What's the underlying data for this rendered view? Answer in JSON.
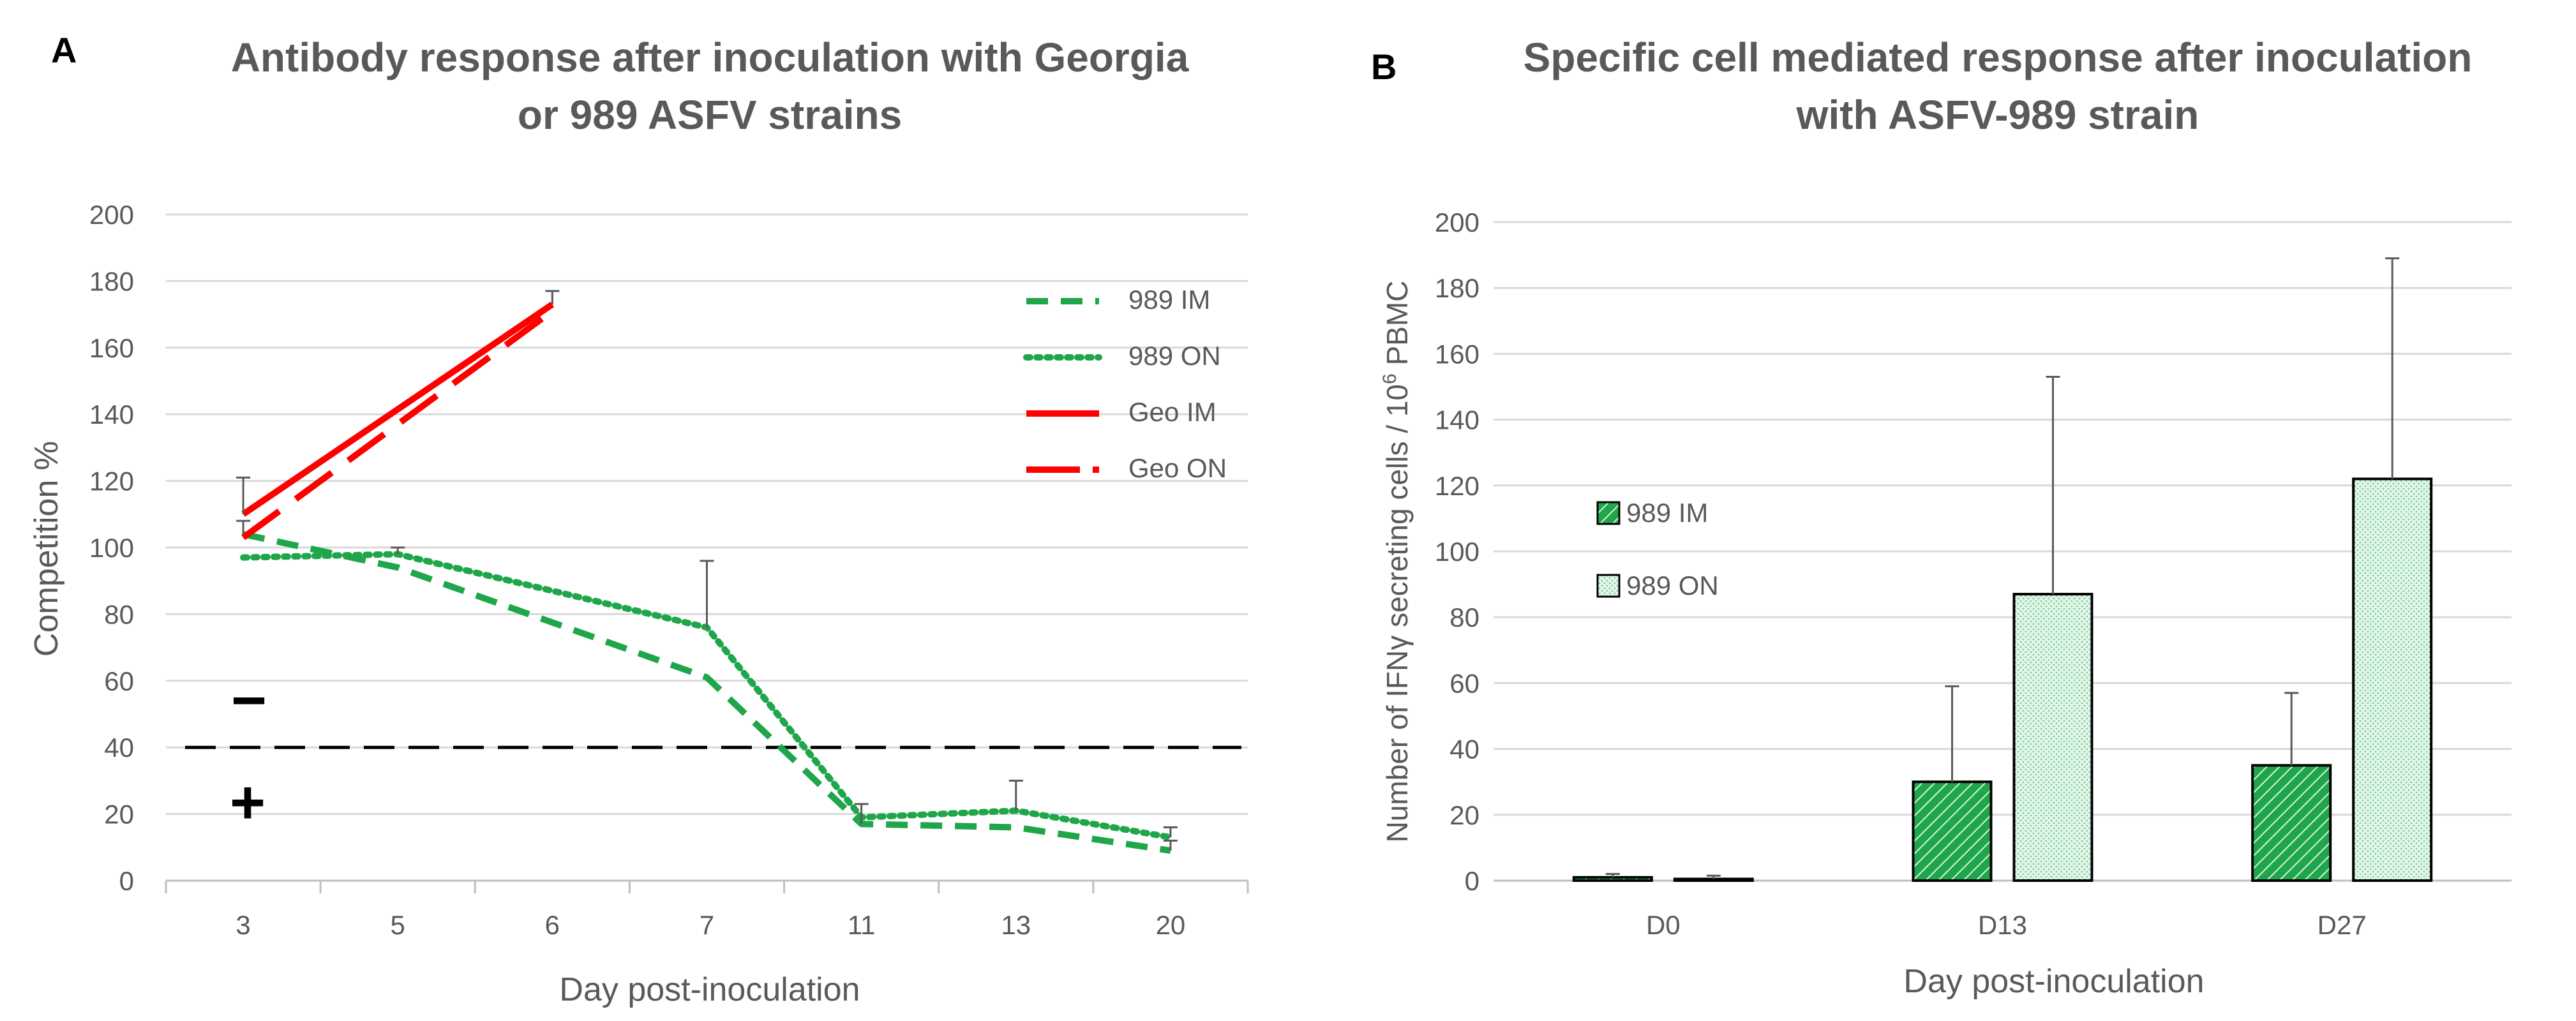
{
  "chart_data": [
    {
      "panel": "A",
      "type": "line",
      "title_lines": [
        "Antibody response after inoculation with Georgia",
        "or 989 ASFV strains"
      ],
      "xlabel": "Day post-inoculation",
      "ylabel": "Competition %",
      "categories": [
        "3",
        "5",
        "6",
        "7",
        "11",
        "13",
        "20"
      ],
      "ylim": [
        0,
        200
      ],
      "yticks": [
        0,
        20,
        40,
        60,
        80,
        100,
        120,
        140,
        160,
        180,
        200
      ],
      "grid": true,
      "legend_position": "top-right",
      "threshold": {
        "value": 40,
        "above_symbol": "−",
        "below_symbol": "+"
      },
      "series": [
        {
          "name": "989 IM",
          "color": "#1fa64a",
          "style": "dashed",
          "values": [
            104,
            94,
            null,
            61,
            17,
            16,
            9
          ],
          "errors": [
            4,
            null,
            null,
            null,
            6,
            null,
            3
          ]
        },
        {
          "name": "989 ON",
          "color": "#1fa64a",
          "style": "dotted",
          "values": [
            97,
            98,
            null,
            76,
            19,
            21,
            13
          ],
          "errors": [
            null,
            2,
            null,
            20,
            null,
            9,
            3
          ]
        },
        {
          "name": "Geo IM",
          "color": "#ff0000",
          "style": "solid",
          "values": [
            110,
            null,
            173,
            null,
            null,
            null,
            null
          ],
          "errors": [
            11,
            null,
            4,
            null,
            null,
            null,
            null
          ]
        },
        {
          "name": "Geo ON",
          "color": "#ff0000",
          "style": "longdash",
          "values": [
            103,
            null,
            171,
            null,
            null,
            null,
            null
          ],
          "errors": [
            null,
            null,
            null,
            null,
            null,
            null,
            null
          ]
        }
      ]
    },
    {
      "panel": "B",
      "type": "bar",
      "title_lines": [
        "Specific cell mediated response after inoculation",
        "with ASFV-989 strain"
      ],
      "xlabel": "Day post-inoculation",
      "ylabel_parts": [
        "Number of IFN",
        "γ",
        " secreting cells / 10",
        "6",
        " PBMC"
      ],
      "categories": [
        "D0",
        "D13",
        "D27"
      ],
      "ylim": [
        0,
        200
      ],
      "yticks": [
        0,
        20,
        40,
        60,
        80,
        100,
        120,
        140,
        160,
        180,
        200
      ],
      "grid": true,
      "legend_position": "middle-left",
      "series": [
        {
          "name": "989 IM",
          "color": "#1fa64a",
          "pattern": "dense-hatch",
          "values": [
            1,
            30,
            35
          ],
          "errors": [
            1,
            29,
            22
          ]
        },
        {
          "name": "989 ON",
          "color": "#cdeedd",
          "pattern": "light-dots",
          "values": [
            0.5,
            87,
            122
          ],
          "errors": [
            1,
            66,
            67
          ]
        }
      ]
    }
  ]
}
